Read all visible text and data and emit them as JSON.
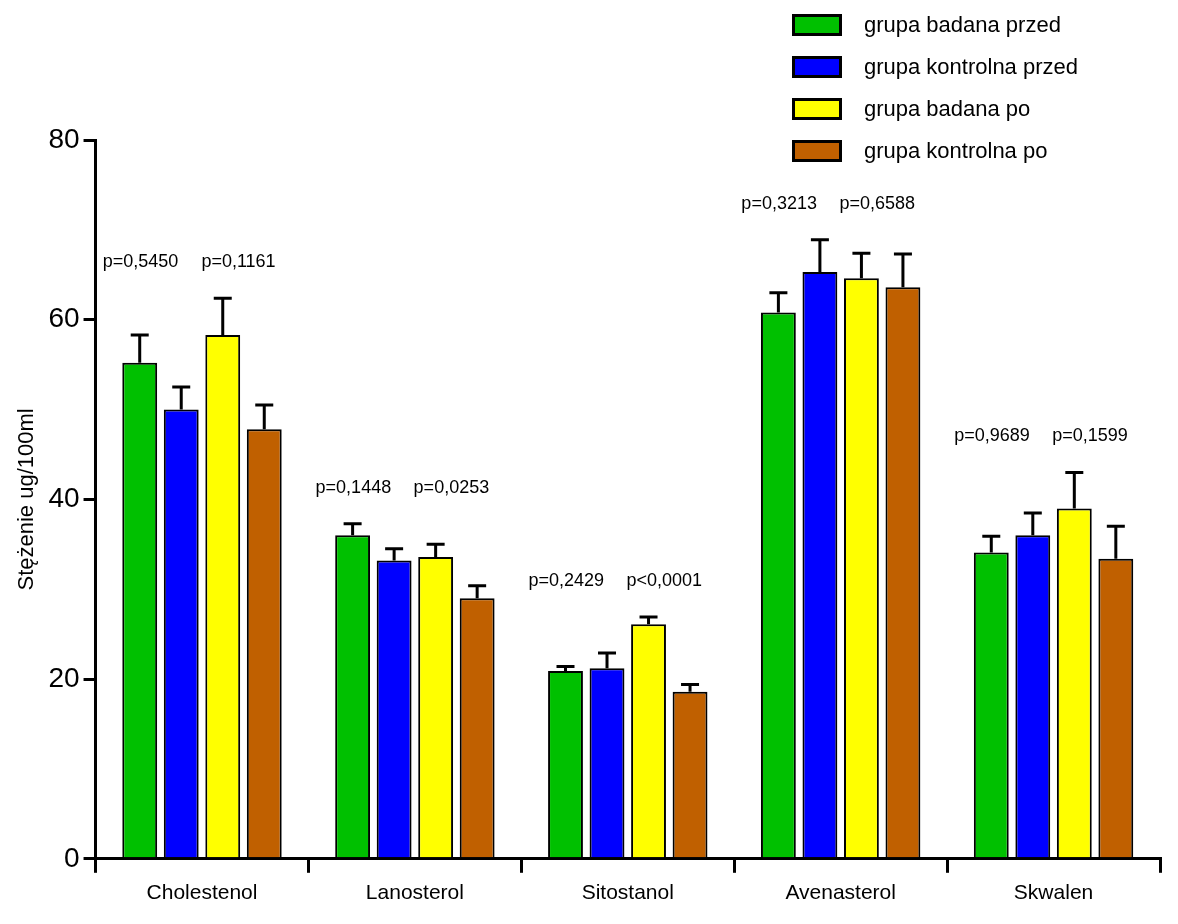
{
  "chart_data": {
    "type": "bar",
    "ylabel": "Stężenie ug/100ml",
    "categories": [
      "Cholestenol",
      "Lanosterol",
      "Sitostanol",
      "Avenasterol",
      "Skwalen"
    ],
    "series": [
      {
        "name": "grupa badana przed",
        "color": "#00c000",
        "values": [
          55.2,
          36.0,
          20.9,
          60.8,
          34.1
        ],
        "errors": [
          [
            55.2,
            58.3
          ],
          [
            36.0,
            37.3
          ],
          [
            20.9,
            21.4
          ],
          [
            60.8,
            63.0
          ],
          [
            34.1,
            35.9
          ]
        ]
      },
      {
        "name": "grupa kontrolna przed",
        "color": "#0000ff",
        "values": [
          50.0,
          33.2,
          21.2,
          65.3,
          36.0
        ],
        "errors": [
          [
            50.0,
            52.5
          ],
          [
            33.2,
            34.5
          ],
          [
            21.2,
            22.9
          ],
          [
            65.3,
            68.9
          ],
          [
            36.0,
            38.5
          ]
        ]
      },
      {
        "name": "grupa badana po",
        "color": "#ffff00",
        "values": [
          58.3,
          33.6,
          26.1,
          64.6,
          39.0
        ],
        "errors": [
          [
            58.3,
            62.4
          ],
          [
            33.6,
            35.0
          ],
          [
            26.1,
            26.9
          ],
          [
            64.6,
            67.4
          ],
          [
            39.0,
            43.0
          ]
        ]
      },
      {
        "name": "grupa kontrolna po",
        "color": "#c06000",
        "values": [
          47.8,
          29.0,
          18.6,
          63.6,
          33.4
        ],
        "errors": [
          [
            47.8,
            50.5
          ],
          [
            29.0,
            30.4
          ],
          [
            18.6,
            19.4
          ],
          [
            63.6,
            67.3
          ],
          [
            33.4,
            37.0
          ]
        ]
      }
    ],
    "ylim": [
      0,
      80
    ],
    "yticks": [
      0,
      20,
      40,
      60,
      80
    ],
    "grid": false,
    "legend": "top right",
    "annotations": [
      "p=0,5450",
      "p=0,1161",
      "p=0,1448",
      "p=0,0253",
      "p=0,2429",
      "p<0,0001",
      "p=0,3213",
      "p=0,6588",
      "p=0,9689",
      "p=0,1599"
    ]
  }
}
